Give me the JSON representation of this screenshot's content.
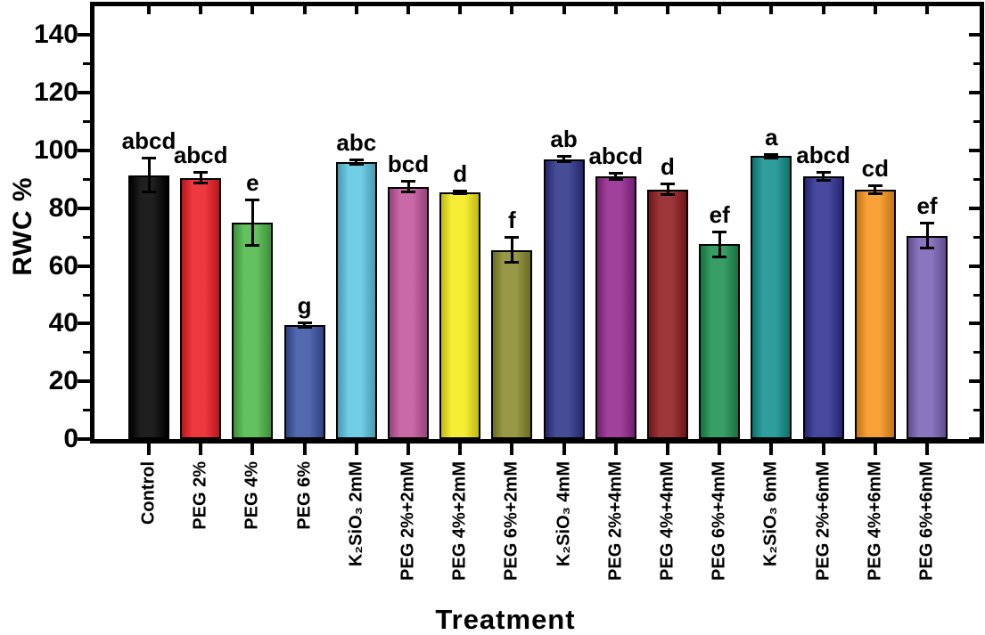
{
  "figure": {
    "background_color": "#ffffff",
    "axis_color": "#000000",
    "bar_outline_color": "#000000"
  },
  "chart_data": {
    "type": "bar",
    "title": "",
    "xlabel": "Treatment",
    "ylabel": "RWC %",
    "ylim": [
      0,
      150
    ],
    "y_major_ticks": [
      0,
      20,
      40,
      60,
      80,
      100,
      120,
      140
    ],
    "y_minor_step": 10,
    "grid": false,
    "legend_position": "none",
    "error_bars": true,
    "categories": [
      "Control",
      "PEG 2%",
      "PEG 4%",
      "PEG 6%",
      "K₂SiO₃ 2mM",
      "PEG 2%+2mM",
      "PEG 4%+2mM",
      "PEG 6%+2mM",
      "K₂SiO₃ 4mM",
      "PEG 2%+4mM",
      "PEG 4%+4mM",
      "PEG 6%+4mM",
      "K₂SiO₃ 6mM",
      "PEG 2%+6mM",
      "PEG 4%+6mM",
      "PEG 6%+6mM"
    ],
    "series": [
      {
        "name": "RWC %",
        "values": [
          91.5,
          90.5,
          75.0,
          39.5,
          96.0,
          87.5,
          85.5,
          65.5,
          97.0,
          91.0,
          86.5,
          67.5,
          98.0,
          91.0,
          86.5,
          70.5
        ],
        "errors": [
          6.0,
          2.0,
          8.0,
          1.0,
          1.0,
          2.0,
          0.7,
          4.5,
          1.0,
          1.2,
          2.0,
          4.5,
          0.8,
          1.5,
          1.5,
          4.5
        ],
        "significance_letters": [
          "abcd",
          "abcd",
          "e",
          "g",
          "abc",
          "bcd",
          "d",
          "f",
          "ab",
          "abcd",
          "d",
          "ef",
          "a",
          "abcd",
          "cd",
          "ef"
        ],
        "colors": [
          "#000000",
          "#ec1c24",
          "#4db848",
          "#3a53a4",
          "#5bc6e2",
          "#c1549c",
          "#f5ec19",
          "#8a8a2e",
          "#2d3389",
          "#93278f",
          "#8f1a1d",
          "#1d9150",
          "#12918e",
          "#2e3192",
          "#f7941d",
          "#7a63b6"
        ]
      }
    ]
  }
}
